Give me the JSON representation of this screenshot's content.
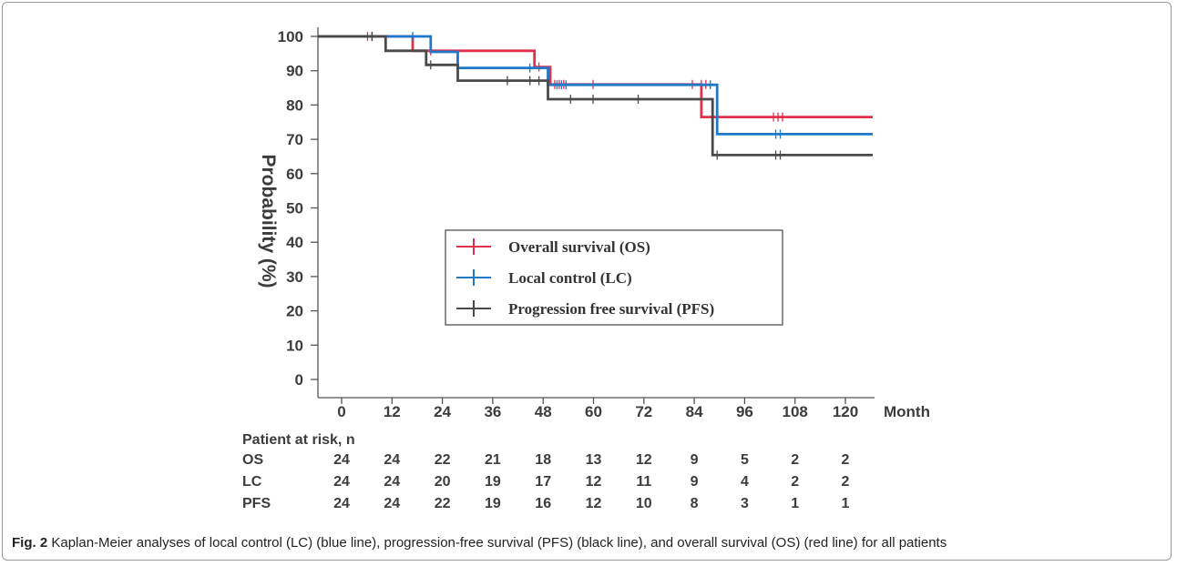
{
  "chart_data": {
    "type": "line",
    "subtype": "kaplan-meier step",
    "title": "",
    "xlabel": "Month",
    "ylabel": "Probability (%)",
    "xlim": [
      0,
      123
    ],
    "ylim": [
      0,
      100
    ],
    "xticks": [
      0,
      12,
      24,
      36,
      48,
      60,
      72,
      84,
      96,
      108,
      120
    ],
    "yticks": [
      0,
      10,
      20,
      30,
      40,
      50,
      60,
      70,
      80,
      90,
      100
    ],
    "grid": false,
    "legend_position": "center",
    "series": [
      {
        "name": "Overall survival (OS)",
        "key": "OS",
        "color": "#e0304c",
        "steps": [
          [
            0,
            100
          ],
          [
            21,
            100
          ],
          [
            21,
            95.8
          ],
          [
            48,
            95.8
          ],
          [
            48,
            91.1
          ],
          [
            51.5,
            91.1
          ],
          [
            51.5,
            86
          ],
          [
            85,
            86
          ],
          [
            85,
            76.5
          ],
          [
            123,
            76.5
          ]
        ],
        "censored": [
          [
            11,
            100
          ],
          [
            12,
            100
          ],
          [
            25,
            95.8
          ],
          [
            49,
            91.1
          ],
          [
            52.5,
            86
          ],
          [
            53.5,
            86
          ],
          [
            54.5,
            86
          ],
          [
            61,
            86
          ],
          [
            83,
            86
          ],
          [
            85,
            86
          ],
          [
            86,
            86
          ],
          [
            101,
            76.5
          ],
          [
            102,
            76.5
          ],
          [
            103,
            76.5
          ]
        ]
      },
      {
        "name": "Local control (LC)",
        "key": "LC",
        "color": "#1f78c8",
        "steps": [
          [
            0,
            100
          ],
          [
            25,
            100
          ],
          [
            25,
            95.5
          ],
          [
            31,
            95.5
          ],
          [
            31,
            90.8
          ],
          [
            51,
            90.8
          ],
          [
            51,
            85.9
          ],
          [
            88.5,
            85.9
          ],
          [
            88.5,
            71.5
          ],
          [
            123,
            71.5
          ]
        ],
        "censored": [
          [
            12,
            100
          ],
          [
            21,
            100
          ],
          [
            47,
            90.8
          ],
          [
            53,
            85.9
          ],
          [
            54,
            85.9
          ],
          [
            55,
            85.9
          ],
          [
            87,
            85.9
          ],
          [
            101.5,
            71.5
          ],
          [
            102.5,
            71.5
          ]
        ]
      },
      {
        "name": "Progression free survival (PFS)",
        "key": "PFS",
        "color": "#4a4a4a",
        "steps": [
          [
            0,
            100
          ],
          [
            15,
            100
          ],
          [
            15,
            95.8
          ],
          [
            24,
            95.8
          ],
          [
            24,
            91.7
          ],
          [
            31,
            91.7
          ],
          [
            31,
            87.1
          ],
          [
            51,
            87.1
          ],
          [
            51,
            81.7
          ],
          [
            87.5,
            81.7
          ],
          [
            87.5,
            65.4
          ],
          [
            123,
            65.4
          ]
        ],
        "censored": [
          [
            12,
            100
          ],
          [
            25,
            91.7
          ],
          [
            42,
            87.1
          ],
          [
            47,
            87.1
          ],
          [
            49,
            87.1
          ],
          [
            56,
            81.7
          ],
          [
            61,
            81.7
          ],
          [
            71,
            81.7
          ],
          [
            88.5,
            65.4
          ],
          [
            101.5,
            65.4
          ],
          [
            102.5,
            65.4
          ]
        ]
      }
    ],
    "risk_table": {
      "title": "Patient at risk, n",
      "rows": [
        {
          "label": "OS",
          "values": [
            "24",
            "24",
            "22",
            "21",
            "18",
            "13",
            "12",
            "9",
            "5",
            "2",
            "2"
          ]
        },
        {
          "label": "LC",
          "values": [
            "24",
            "24",
            "20",
            "19",
            "17",
            "12",
            "11",
            "9",
            "4",
            "2",
            "2"
          ]
        },
        {
          "label": "PFS",
          "values": [
            "24",
            "24",
            "22",
            "19",
            "16",
            "12",
            "10",
            "8",
            "3",
            "1",
            "1"
          ]
        }
      ]
    }
  },
  "caption": {
    "label": "Fig. 2",
    "text": "Kaplan-Meier analyses of local control (LC) (blue line), progression-free survival (PFS) (black line), and overall survival (OS) (red line) for all patients"
  }
}
